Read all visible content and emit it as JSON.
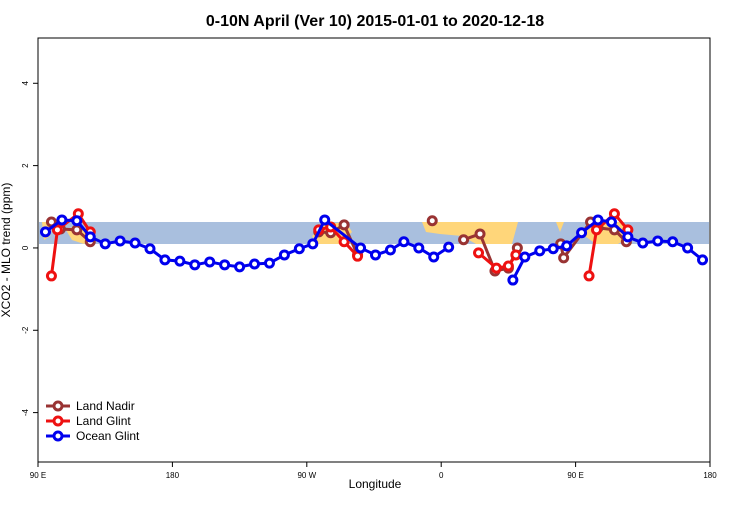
{
  "chart_data": {
    "type": "line",
    "title": "0-10N April (Ver 10)   2015-01-01 to 2020-12-18",
    "x_label": "Longitude",
    "y_label": "XCO2 - MLO trend (ppm)",
    "xlim": [
      90,
      540
    ],
    "xticks": [
      {
        "value": 90,
        "label": "90 E"
      },
      {
        "value": 180,
        "label": "180"
      },
      {
        "value": 270,
        "label": "90 W"
      },
      {
        "value": 360,
        "label": "0"
      },
      {
        "value": 450,
        "label": "90 E"
      },
      {
        "value": 540,
        "label": "180"
      }
    ],
    "ylim": [
      -5.2,
      5.1
    ],
    "yticks": [
      -4,
      -2,
      0,
      2,
      4
    ],
    "legend": "bottom-left",
    "series": [
      {
        "name": "Land Nadir",
        "color": "#993333",
        "x": [
          99,
          105,
          116,
          125,
          200,
          278,
          286,
          295,
          304,
          330,
          354,
          370,
          375,
          386,
          396,
          405,
          411,
          425,
          440,
          442,
          460,
          465,
          476,
          484
        ],
        "values": [
          0.63,
          0.46,
          0.44,
          0.15,
          null,
          0.39,
          0.37,
          0.56,
          -0.17,
          null,
          0.66,
          null,
          0.2,
          0.34,
          -0.56,
          -0.49,
          0.0,
          null,
          0.1,
          -0.24,
          0.63,
          0.49,
          0.44,
          0.15
        ]
      },
      {
        "name": "Land Glint",
        "color": "#ee1111",
        "x": [
          99,
          103,
          117,
          125,
          200,
          278,
          286,
          295,
          304,
          340,
          385,
          397,
          405,
          410,
          430,
          459,
          464,
          476,
          485
        ],
        "values": [
          -0.68,
          0.44,
          0.83,
          0.39,
          null,
          0.44,
          0.51,
          0.15,
          -0.2,
          null,
          -0.12,
          -0.49,
          -0.44,
          -0.17,
          null,
          -0.68,
          0.44,
          0.83,
          0.44
        ]
      },
      {
        "name": "Ocean Glint",
        "color": "#0000ee",
        "x": [
          95,
          106,
          116,
          125,
          135,
          145,
          155,
          165,
          175,
          185,
          195,
          205,
          215,
          225,
          235,
          245,
          255,
          265,
          274,
          282,
          306,
          316,
          326,
          335,
          345,
          355,
          365,
          386,
          408,
          416,
          426,
          435,
          444,
          454,
          465,
          474,
          485,
          495,
          505,
          515,
          525,
          535
        ],
        "values": [
          0.39,
          0.68,
          0.66,
          0.27,
          0.1,
          0.17,
          0.12,
          -0.02,
          -0.29,
          -0.32,
          -0.41,
          -0.34,
          -0.41,
          -0.46,
          -0.39,
          -0.37,
          -0.17,
          -0.02,
          0.1,
          0.68,
          0.0,
          -0.17,
          -0.05,
          0.15,
          0.0,
          -0.22,
          0.02,
          null,
          -0.78,
          -0.22,
          -0.07,
          -0.02,
          0.05,
          0.37,
          0.68,
          0.63,
          0.27,
          0.12,
          0.17,
          0.15,
          0.0,
          -0.29
        ]
      }
    ]
  }
}
